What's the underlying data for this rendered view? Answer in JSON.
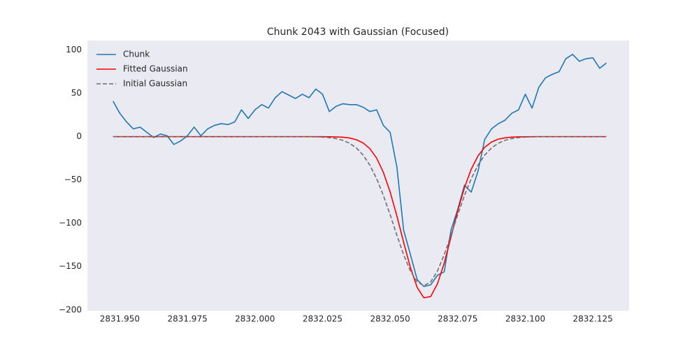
{
  "chart_data": {
    "type": "line",
    "title": "Chunk 2043 with Gaussian (Focused)",
    "background": "#eaeaf2",
    "legend": "upper-left",
    "grid": false,
    "xlim": [
      2831.938,
      2832.1384
    ],
    "ylim": [
      -201,
      111
    ],
    "xticks": [
      {
        "value": 2831.95,
        "label": "2831.950"
      },
      {
        "value": 2831.975,
        "label": "2831.975"
      },
      {
        "value": 2832.0,
        "label": "2832.000"
      },
      {
        "value": 2832.025,
        "label": "2832.025"
      },
      {
        "value": 2832.05,
        "label": "2832.050"
      },
      {
        "value": 2832.075,
        "label": "2832.075"
      },
      {
        "value": 2832.1,
        "label": "2832.100"
      },
      {
        "value": 2832.125,
        "label": "2832.125"
      }
    ],
    "yticks": [
      100,
      50,
      0,
      {
        "value": -50,
        "label": "−50"
      },
      {
        "value": -100,
        "label": "−100"
      },
      {
        "value": -150,
        "label": "−150"
      },
      {
        "value": -200,
        "label": "−200"
      }
    ],
    "x": [
      2831.9475,
      2831.95,
      2831.9525,
      2831.955,
      2831.9575,
      2831.96,
      2831.9625,
      2831.965,
      2831.9675,
      2831.97,
      2831.9725,
      2831.975,
      2831.9775,
      2831.98,
      2831.9825,
      2831.985,
      2831.9875,
      2831.99,
      2831.9925,
      2831.995,
      2831.9975,
      2832.0,
      2832.0025,
      2832.005,
      2832.0075,
      2832.01,
      2832.0125,
      2832.015,
      2832.0175,
      2832.02,
      2832.0225,
      2832.025,
      2832.0275,
      2832.03,
      2832.0325,
      2832.035,
      2832.0375,
      2832.04,
      2832.0425,
      2832.045,
      2832.0475,
      2832.05,
      2832.0525,
      2832.055,
      2832.0575,
      2832.06,
      2832.0625,
      2832.065,
      2832.0675,
      2832.07,
      2832.0725,
      2832.075,
      2832.0775,
      2832.08,
      2832.0825,
      2832.085,
      2832.0875,
      2832.09,
      2832.0925,
      2832.095,
      2832.0975,
      2832.1,
      2832.1025,
      2832.105,
      2832.1075,
      2832.11,
      2832.1125,
      2832.115,
      2832.1175,
      2832.12,
      2832.1225,
      2832.125,
      2832.1275,
      2832.13
    ],
    "series": [
      {
        "name": "Chunk",
        "color": "#1f77b4",
        "linestyle": "solid",
        "values": [
          41,
          27,
          17,
          9,
          11,
          5,
          -1,
          3,
          1,
          -9,
          -5,
          1,
          11,
          1,
          9,
          13,
          15,
          14,
          17,
          31,
          21,
          31,
          37,
          33,
          45,
          52,
          48,
          44,
          49,
          45,
          55,
          49,
          29,
          35,
          38,
          37,
          37,
          34,
          29,
          31,
          13,
          5,
          -35,
          -108,
          -136,
          -165,
          -173,
          -171,
          -160,
          -156,
          -108,
          -84,
          -56,
          -64,
          -40,
          -3,
          9,
          15,
          19,
          27,
          31,
          49,
          33,
          57,
          68,
          72,
          75,
          90,
          95,
          87,
          90,
          91,
          79,
          85
        ]
      },
      {
        "name": "Fitted Gaussian",
        "color": "#ff0000",
        "linestyle": "solid",
        "values": [
          0,
          0,
          0,
          0,
          0,
          0,
          0,
          0,
          0,
          0,
          0,
          0,
          0,
          0,
          0,
          0,
          0,
          0,
          0,
          0,
          0,
          0,
          0,
          0,
          0,
          0,
          0,
          0,
          0,
          0,
          0,
          0,
          -0.1,
          -0.3,
          -0.6,
          -1.5,
          -3.5,
          -7.2,
          -13.8,
          -24.7,
          -41.2,
          -63.8,
          -91.5,
          -122,
          -151,
          -174,
          -186,
          -184.5,
          -170,
          -146,
          -116,
          -85.6,
          -58.8,
          -37.5,
          -22.2,
          -12.2,
          -6.2,
          -2.9,
          -1.3,
          -0.5,
          -0.2,
          -0.1,
          0,
          0,
          0,
          0,
          0,
          0,
          0,
          0,
          0,
          0,
          0,
          0
        ]
      },
      {
        "name": "Initial Gaussian",
        "color": "#6e6e6e",
        "linestyle": "dashed",
        "values": [
          0,
          0,
          0,
          0,
          0,
          0,
          0,
          0,
          0,
          0,
          0,
          0,
          0,
          0,
          0,
          0,
          0,
          0,
          0,
          0,
          0,
          0,
          0,
          0,
          0,
          0,
          0,
          0,
          0,
          0,
          -0.2,
          -0.5,
          -1.1,
          -2.2,
          -4.2,
          -7.6,
          -13,
          -21.2,
          -32.9,
          -48.5,
          -67.9,
          -90.1,
          -113.8,
          -136.3,
          -155.1,
          -167.6,
          -172,
          -167.6,
          -155.1,
          -136.3,
          -113.8,
          -90.1,
          -67.9,
          -48.5,
          -32.9,
          -21.2,
          -13,
          -7.6,
          -4.2,
          -2.2,
          -1.1,
          -0.5,
          -0.2,
          0,
          0,
          0,
          0,
          0,
          0,
          0,
          0,
          0,
          0,
          0
        ]
      }
    ]
  }
}
